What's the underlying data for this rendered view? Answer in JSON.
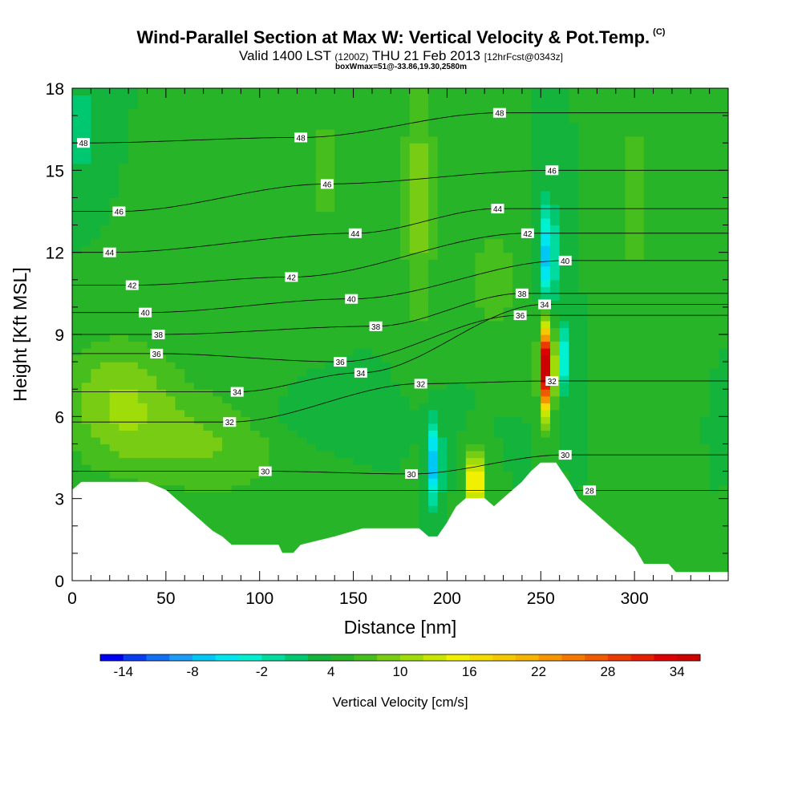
{
  "header": {
    "title": "Wind-Parallel Section at Max W: Vertical Velocity & Pot.Temp.",
    "title_mark": "(C)",
    "subtitle_a": "Valid 1400 LST",
    "subtitle_b": "(1200Z)",
    "subtitle_c": "THU 21 Feb 2013",
    "subtitle_d": "[12hrFcst@0343z]",
    "subnote": "boxWmax=51@-33.86,19.30,2580m"
  },
  "chart_data": {
    "type": "heatmap",
    "title": "Wind-Parallel Section at Max W: Vertical Velocity & Pot.Temp.",
    "xlabel": "Distance [nm]",
    "ylabel": "Height [Kft MSL]",
    "xlim": [
      0,
      350
    ],
    "ylim": [
      0,
      18
    ],
    "x_ticks": [
      0,
      50,
      100,
      150,
      200,
      250,
      300
    ],
    "y_ticks": [
      0,
      3,
      6,
      9,
      12,
      15,
      18
    ],
    "colorbar": {
      "label": "Vertical Velocity [cm/s]",
      "ticks": [
        -14,
        -8,
        -2,
        4,
        10,
        16,
        22,
        28,
        34
      ],
      "min": -16,
      "step": 2,
      "colors": [
        "#0000f0",
        "#0a3cf0",
        "#1470f0",
        "#1e9cf5",
        "#00c8f5",
        "#00e6f0",
        "#00f0d2",
        "#00dca0",
        "#00c870",
        "#14b43c",
        "#28b428",
        "#46be1e",
        "#78cd14",
        "#a0dc0a",
        "#c8e600",
        "#f0f000",
        "#f5dc00",
        "#f5c800",
        "#f5b400",
        "#f59600",
        "#f57800",
        "#f05a00",
        "#eb3c00",
        "#e61e00",
        "#dc0000",
        "#cd0000"
      ]
    },
    "terrain": [
      [
        0,
        3.3
      ],
      [
        5,
        3.6
      ],
      [
        40,
        3.6
      ],
      [
        50,
        3.3
      ],
      [
        55,
        3.0
      ],
      [
        60,
        2.7
      ],
      [
        65,
        2.4
      ],
      [
        70,
        2.1
      ],
      [
        75,
        1.8
      ],
      [
        80,
        1.6
      ],
      [
        85,
        1.3
      ],
      [
        110,
        1.3
      ],
      [
        112,
        1.0
      ],
      [
        118,
        1.0
      ],
      [
        122,
        1.3
      ],
      [
        140,
        1.6
      ],
      [
        155,
        1.9
      ],
      [
        185,
        1.9
      ],
      [
        190,
        1.6
      ],
      [
        195,
        1.6
      ],
      [
        200,
        2.1
      ],
      [
        205,
        2.7
      ],
      [
        210,
        3.0
      ],
      [
        220,
        3.0
      ],
      [
        225,
        2.7
      ],
      [
        230,
        3.0
      ],
      [
        235,
        3.3
      ],
      [
        240,
        3.6
      ],
      [
        245,
        4.0
      ],
      [
        250,
        4.3
      ],
      [
        258,
        4.3
      ],
      [
        262,
        3.9
      ],
      [
        265,
        3.6
      ],
      [
        270,
        3.0
      ],
      [
        275,
        2.7
      ],
      [
        280,
        2.4
      ],
      [
        285,
        2.1
      ],
      [
        290,
        1.8
      ],
      [
        295,
        1.5
      ],
      [
        300,
        1.2
      ],
      [
        305,
        0.6
      ],
      [
        310,
        0.6
      ],
      [
        318,
        0.6
      ],
      [
        322,
        0.3
      ],
      [
        350,
        0.3
      ]
    ],
    "w_background": 4,
    "w_features": [
      {
        "x": 25,
        "y": 6.5,
        "sx": 30,
        "sy": 2.3,
        "w": 6
      },
      {
        "x": 75,
        "y": 5.0,
        "sx": 40,
        "sy": 2.0,
        "w": 4
      },
      {
        "x": 135,
        "y": 15.0,
        "sx": 7,
        "sy": 3.0,
        "w": 3
      },
      {
        "x": 185,
        "y": 14.0,
        "sx": 9,
        "sy": 5.0,
        "w": 5
      },
      {
        "x": 300,
        "y": 14.0,
        "sx": 8,
        "sy": 4.0,
        "w": 3
      },
      {
        "x": 5,
        "y": 16.5,
        "sx": 6,
        "sy": 1.8,
        "w": -4
      },
      {
        "x": 135,
        "y": 6.0,
        "sx": 40,
        "sy": 1.0,
        "w": -2
      },
      {
        "x": 193,
        "y": 4.3,
        "sx": 4,
        "sy": 1.4,
        "w": -12
      },
      {
        "x": 215,
        "y": 3.6,
        "sx": 5,
        "sy": 1.1,
        "w": 14
      },
      {
        "x": 253,
        "y": 7.8,
        "sx": 3.5,
        "sy": 1.5,
        "w": 35
      },
      {
        "x": 254,
        "y": 11.9,
        "sx": 4,
        "sy": 1.8,
        "w": -12
      },
      {
        "x": 263,
        "y": 8.2,
        "sx": 3,
        "sy": 1.2,
        "w": -8
      },
      {
        "x": 225,
        "y": 11.0,
        "sx": 12,
        "sy": 2.0,
        "w": 4
      }
    ],
    "theta_isolines": [
      {
        "value": 30,
        "label_points": [
          [
            103,
            4.0
          ],
          [
            181,
            3.9
          ],
          [
            263,
            4.6
          ]
        ],
        "label_texts": [
          "30",
          "30",
          "30"
        ]
      },
      {
        "value": 28,
        "label_points": [
          [
            276,
            3.3
          ]
        ],
        "label_texts": [
          "28"
        ]
      },
      {
        "value": 32,
        "label_points": [
          [
            84,
            5.8
          ],
          [
            186,
            7.2
          ],
          [
            256,
            7.3
          ]
        ],
        "label_texts": [
          "32",
          "32",
          "32"
        ]
      },
      {
        "value": 34,
        "label_points": [
          [
            88,
            6.9
          ],
          [
            154,
            7.6
          ],
          [
            252,
            10.1
          ]
        ],
        "label_texts": [
          "34",
          "34",
          "34"
        ]
      },
      {
        "value": 36,
        "label_points": [
          [
            45,
            8.3
          ],
          [
            143,
            8.0
          ],
          [
            239,
            9.7
          ]
        ],
        "label_texts": [
          "36",
          "36",
          "36"
        ]
      },
      {
        "value": 38,
        "label_points": [
          [
            46,
            9.0
          ],
          [
            162,
            9.3
          ],
          [
            240,
            10.5
          ]
        ],
        "label_texts": [
          "38",
          "38",
          "38"
        ]
      },
      {
        "value": 40,
        "label_points": [
          [
            39,
            9.8
          ],
          [
            149,
            10.3
          ],
          [
            263,
            11.7
          ]
        ],
        "label_texts": [
          "40",
          "40",
          "40"
        ]
      },
      {
        "value": 42,
        "label_points": [
          [
            32,
            10.8
          ],
          [
            117,
            11.1
          ],
          [
            243,
            12.7
          ]
        ],
        "label_texts": [
          "42",
          "42",
          "42"
        ]
      },
      {
        "value": 44,
        "label_points": [
          [
            20,
            12.0
          ],
          [
            151,
            12.7
          ],
          [
            227,
            13.6
          ]
        ],
        "label_texts": [
          "44",
          "44",
          "44"
        ]
      },
      {
        "value": 46,
        "label_points": [
          [
            25,
            13.5
          ],
          [
            136,
            14.5
          ],
          [
            256,
            15.0
          ]
        ],
        "label_texts": [
          "46",
          "46",
          "46"
        ]
      },
      {
        "value": 48,
        "label_points": [
          [
            6,
            16.0
          ],
          [
            122,
            16.2
          ],
          [
            228,
            17.1
          ]
        ],
        "label_texts": [
          "48",
          "48",
          "48"
        ]
      }
    ]
  }
}
